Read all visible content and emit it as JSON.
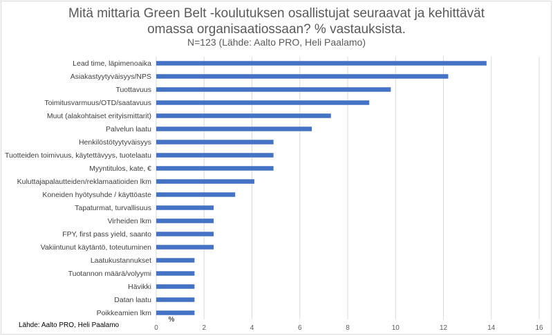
{
  "chart_data": {
    "type": "bar",
    "orientation": "horizontal",
    "title_line1": "Mitä mittaria Green Belt -koulutuksen osallistujat seuraavat ja kehittävät",
    "title_line2": "omassa organisaatiossaan? % vastauksista.",
    "subtitle": "N=123 (Lähde: Aalto PRO, Heli Paalamo)",
    "xlabel": "%",
    "xlim": [
      0,
      16
    ],
    "xticks": [
      0,
      2,
      4,
      6,
      8,
      10,
      12,
      14,
      16
    ],
    "grid": true,
    "bar_color": "#4472c4",
    "categories": [
      "Lead time, läpimenoaika",
      "Asiakastyytyväisyys/NPS",
      "Tuottavuus",
      "Toimitusvarmuus/OTD/saatavuus",
      "Muut (alakohtaiset erityismittarit)",
      "Palvelun laatu",
      "Henkilöstötyytyväisyys",
      "Tuotteiden toimivuus, käytettävyys, tuotelaatu",
      "Myyntitulos, kate, €",
      "Kuluttajapalautteiden/reklamaatioiden lkm",
      "Koneiden hyötysuhde / käyttöaste",
      "Tapaturmat, turvallisuus",
      "Virheiden lkm",
      "FPY, first pass yield, saanto",
      "Vakiintunut käytäntö, toteutuminen",
      "Laatukustannukset",
      "Tuotannon määrä/volyymi",
      "Hävikki",
      "Datan laatu",
      "Poikkeamien lkm"
    ],
    "values": [
      13.8,
      12.2,
      9.8,
      8.9,
      7.3,
      6.5,
      4.9,
      4.9,
      4.9,
      4.1,
      3.3,
      2.4,
      2.4,
      2.4,
      2.4,
      1.6,
      1.6,
      1.6,
      1.6,
      1.6
    ]
  },
  "footer": {
    "source_note": "Lähde: Aalto PRO, Heli Paalamo"
  }
}
